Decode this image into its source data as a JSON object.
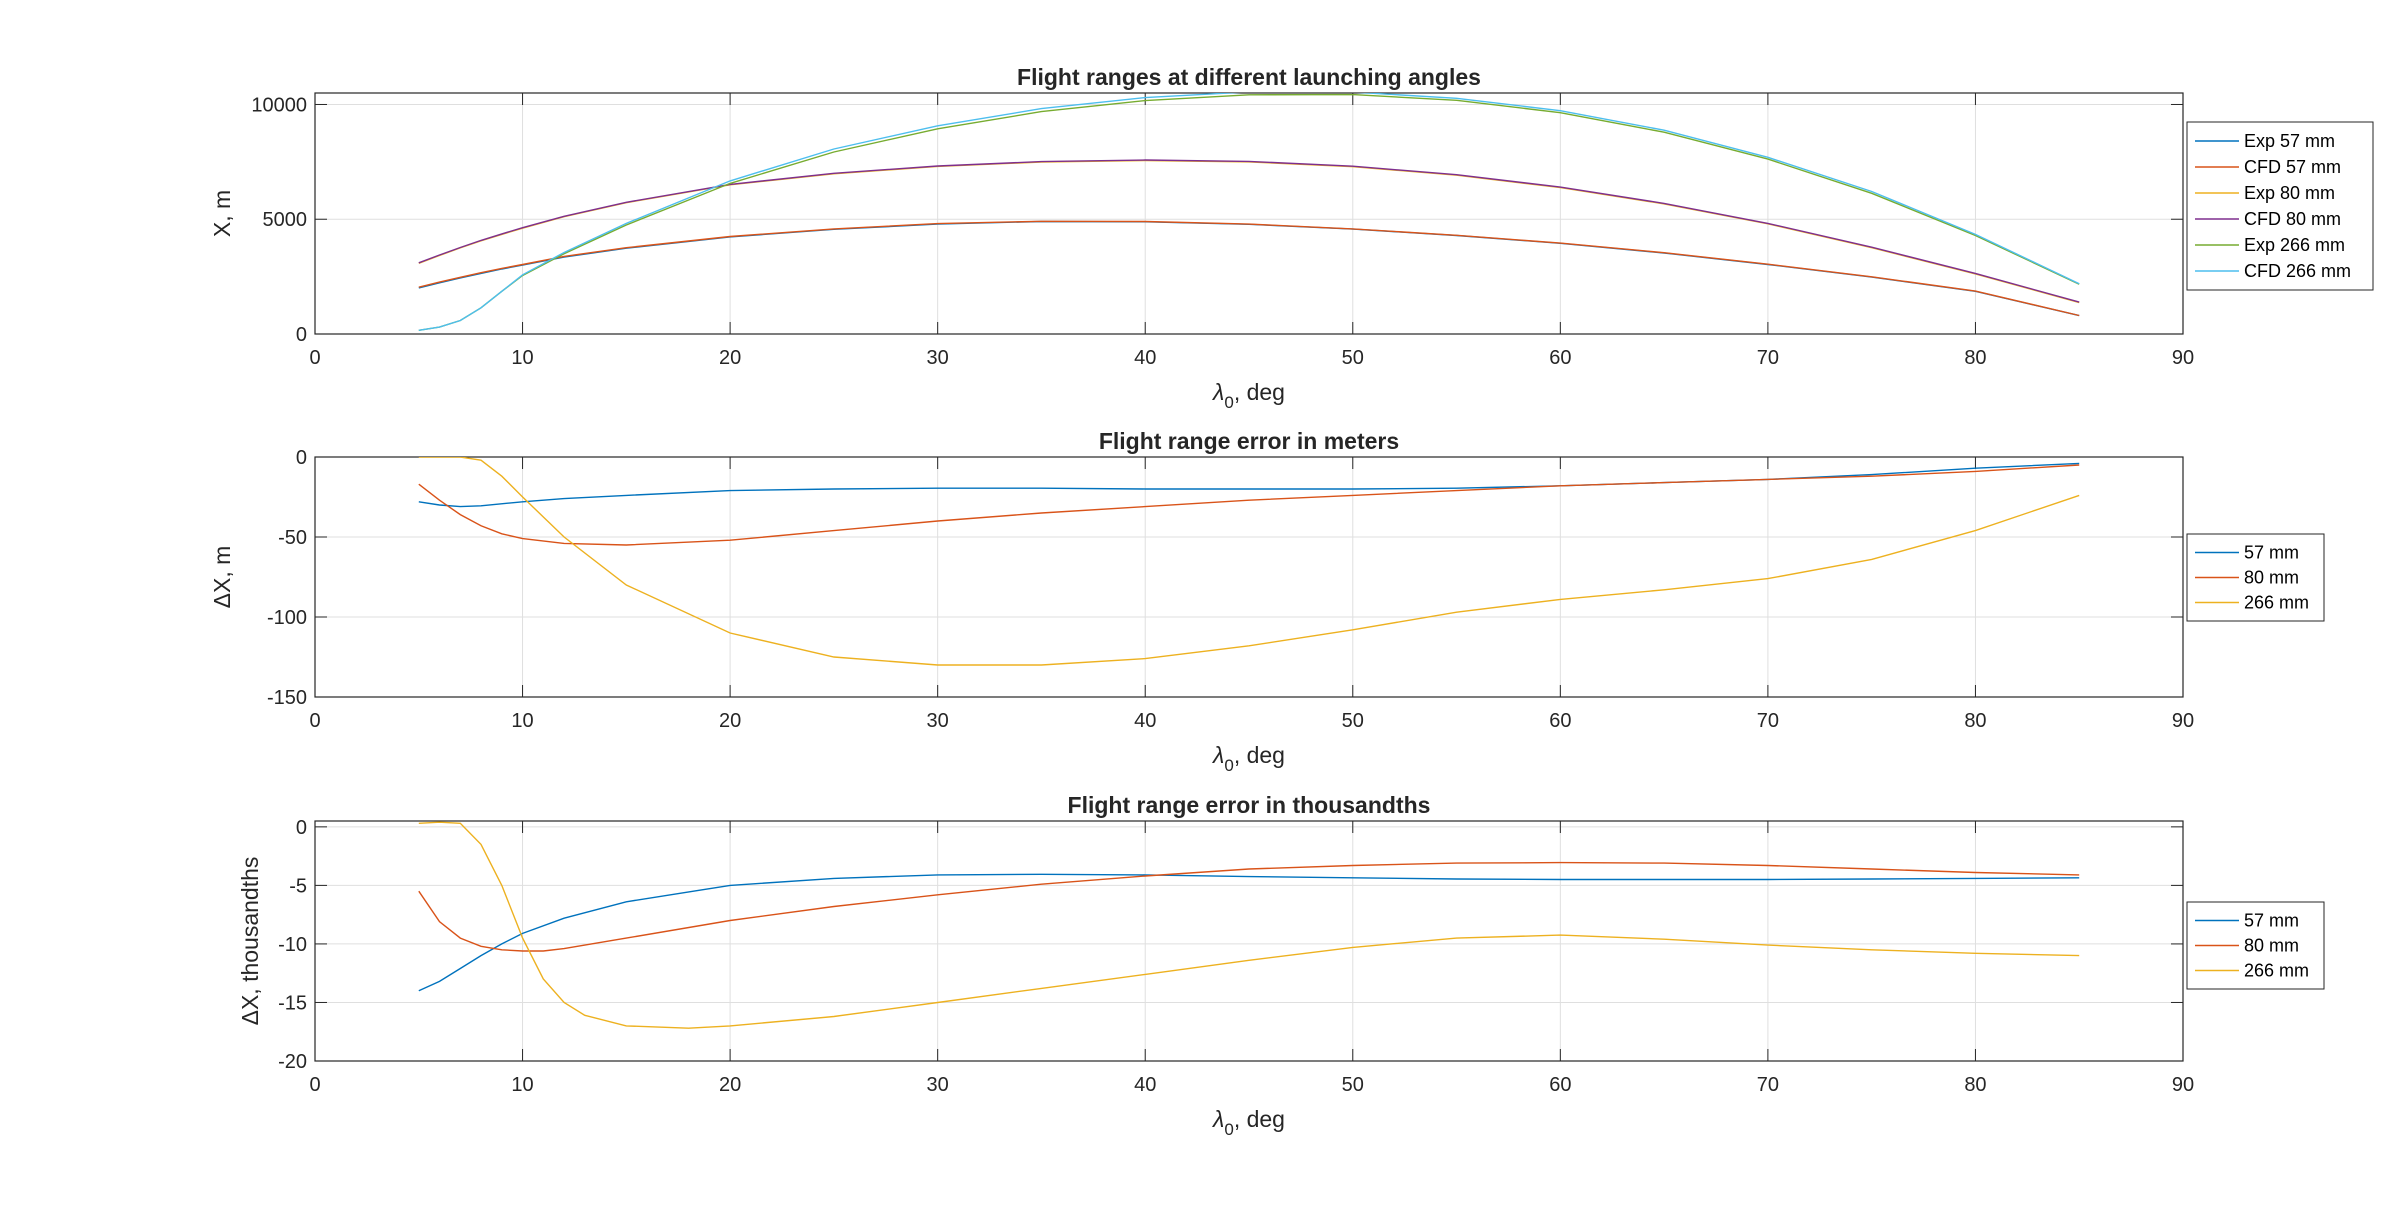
{
  "chart_data": [
    {
      "type": "line",
      "title": "Flight ranges at different launching angles",
      "xlabel_symbol": "λ",
      "xlabel_subscript": "0",
      "xlabel_unit": ", deg",
      "ylabel": "X, m",
      "xlim": [
        0,
        90
      ],
      "ylim": [
        0,
        10500
      ],
      "xticks": [
        0,
        10,
        20,
        30,
        40,
        50,
        60,
        70,
        80,
        90
      ],
      "yticks": [
        0,
        5000,
        10000
      ],
      "grid": true,
      "legend_position": "outside-right",
      "x": [
        5,
        6,
        7,
        8,
        9,
        10,
        12,
        15,
        20,
        25,
        30,
        35,
        40,
        45,
        50,
        55,
        60,
        65,
        70,
        75,
        80,
        85
      ],
      "series": [
        {
          "name": "Exp 57 mm",
          "color": "#0072BD",
          "values": [
            2010,
            2230,
            2440,
            2640,
            2830,
            3000,
            3350,
            3740,
            4230,
            4560,
            4790,
            4900,
            4890,
            4780,
            4570,
            4290,
            3950,
            3530,
            3030,
            2480,
            1860,
            800
          ]
        },
        {
          "name": "CFD 57 mm",
          "color": "#D95319",
          "values": [
            2040,
            2260,
            2470,
            2670,
            2860,
            3030,
            3380,
            3760,
            4250,
            4580,
            4810,
            4910,
            4900,
            4790,
            4580,
            4300,
            3960,
            3540,
            3040,
            2490,
            1870,
            805
          ]
        },
        {
          "name": "Exp 80 mm",
          "color": "#EDB120",
          "values": [
            3080,
            3420,
            3750,
            4060,
            4340,
            4610,
            5110,
            5720,
            6500,
            6980,
            7300,
            7490,
            7560,
            7500,
            7290,
            6920,
            6380,
            5670,
            4800,
            3760,
            2620,
            1370
          ]
        },
        {
          "name": "CFD 80 mm",
          "color": "#7E2F8E",
          "values": [
            3100,
            3440,
            3770,
            4080,
            4360,
            4630,
            5130,
            5740,
            6520,
            7000,
            7320,
            7510,
            7580,
            7520,
            7310,
            6940,
            6400,
            5690,
            4820,
            3780,
            2640,
            1390
          ]
        },
        {
          "name": "Exp 266 mm",
          "color": "#77AC30",
          "values": [
            160,
            300,
            590,
            1140,
            1860,
            2550,
            3500,
            4750,
            6560,
            7930,
            8940,
            9690,
            10170,
            10420,
            10430,
            10180,
            9640,
            8790,
            7620,
            6130,
            4290,
            2170
          ]
        },
        {
          "name": "CFD 266 mm",
          "color": "#4DBEEE",
          "values": [
            160,
            300,
            590,
            1140,
            1860,
            2580,
            3550,
            4820,
            6670,
            8060,
            9070,
            9820,
            10300,
            10550,
            10540,
            10270,
            9730,
            8880,
            7700,
            6210,
            4340,
            2190
          ]
        }
      ]
    },
    {
      "type": "line",
      "title": "Flight range error in meters",
      "xlabel_symbol": "λ",
      "xlabel_subscript": "0",
      "xlabel_unit": ", deg",
      "ylabel": "ΔX, m",
      "xlim": [
        0,
        90
      ],
      "ylim": [
        -150,
        0
      ],
      "xticks": [
        0,
        10,
        20,
        30,
        40,
        50,
        60,
        70,
        80,
        90
      ],
      "yticks": [
        -150,
        -100,
        -50,
        0
      ],
      "grid": true,
      "legend_position": "outside-right",
      "series": [
        {
          "name": "57 mm",
          "color": "#0072BD",
          "x": [
            5,
            6,
            7,
            8,
            10,
            12,
            15,
            20,
            25,
            30,
            35,
            40,
            45,
            50,
            55,
            60,
            65,
            70,
            75,
            80,
            85
          ],
          "values": [
            -28,
            -30,
            -31,
            -30.5,
            -28,
            -26,
            -24,
            -21,
            -20,
            -19.5,
            -19.5,
            -20,
            -20,
            -20,
            -19.5,
            -18,
            -16,
            -14,
            -11,
            -7,
            -4
          ]
        },
        {
          "name": "80 mm",
          "color": "#D95319",
          "x": [
            5,
            6,
            7,
            8,
            9,
            10,
            12,
            15,
            20,
            25,
            30,
            35,
            40,
            45,
            50,
            55,
            60,
            65,
            70,
            75,
            80,
            85
          ],
          "values": [
            -17,
            -27,
            -36,
            -43,
            -48,
            -51,
            -54,
            -55,
            -52,
            -46,
            -40,
            -35,
            -31,
            -27,
            -24,
            -21,
            -18,
            -16,
            -14,
            -12,
            -9,
            -5
          ]
        },
        {
          "name": "266 mm",
          "color": "#EDB120",
          "x": [
            5,
            6,
            7,
            8,
            9,
            10,
            12,
            15,
            20,
            25,
            30,
            35,
            40,
            45,
            50,
            55,
            60,
            65,
            70,
            75,
            80,
            85
          ],
          "values": [
            0,
            0,
            0,
            -2,
            -12,
            -25,
            -50,
            -80,
            -110,
            -125,
            -130,
            -130,
            -126,
            -118,
            -108,
            -97,
            -89,
            -83,
            -76,
            -64,
            -46,
            -24
          ]
        }
      ]
    },
    {
      "type": "line",
      "title": "Flight range error in thousandths",
      "xlabel_symbol": "λ",
      "xlabel_subscript": "0",
      "xlabel_unit": ", deg",
      "ylabel": "ΔX, thousandths",
      "xlim": [
        0,
        90
      ],
      "ylim": [
        -20,
        0.5
      ],
      "xticks": [
        0,
        10,
        20,
        30,
        40,
        50,
        60,
        70,
        80,
        90
      ],
      "yticks": [
        -20,
        -15,
        -10,
        -5,
        0
      ],
      "grid": true,
      "legend_position": "outside-right",
      "series": [
        {
          "name": "57 mm",
          "color": "#0072BD",
          "x": [
            5,
            6,
            7,
            8,
            9,
            10,
            12,
            15,
            20,
            25,
            30,
            35,
            40,
            45,
            50,
            55,
            60,
            65,
            70,
            75,
            80,
            85
          ],
          "values": [
            -14,
            -13.2,
            -12.1,
            -11,
            -10,
            -9.1,
            -7.8,
            -6.4,
            -5,
            -4.4,
            -4.1,
            -4.05,
            -4.1,
            -4.25,
            -4.35,
            -4.45,
            -4.5,
            -4.5,
            -4.5,
            -4.45,
            -4.4,
            -4.35
          ]
        },
        {
          "name": "80 mm",
          "color": "#D95319",
          "x": [
            5,
            6,
            7,
            8,
            9,
            10,
            11,
            12,
            15,
            20,
            25,
            30,
            35,
            40,
            45,
            50,
            55,
            60,
            65,
            70,
            75,
            80,
            85
          ],
          "values": [
            -5.5,
            -8.1,
            -9.5,
            -10.2,
            -10.5,
            -10.6,
            -10.6,
            -10.4,
            -9.5,
            -8,
            -6.8,
            -5.8,
            -4.9,
            -4.2,
            -3.6,
            -3.3,
            -3.1,
            -3.05,
            -3.1,
            -3.3,
            -3.6,
            -3.9,
            -4.1
          ]
        },
        {
          "name": "266 mm",
          "color": "#EDB120",
          "x": [
            5,
            6,
            7,
            8,
            9,
            10,
            11,
            12,
            13,
            15,
            18,
            20,
            25,
            30,
            35,
            40,
            45,
            50,
            55,
            60,
            65,
            70,
            75,
            80,
            85
          ],
          "values": [
            0.3,
            0.4,
            0.3,
            -1.5,
            -5,
            -9.5,
            -13,
            -15,
            -16.1,
            -17,
            -17.2,
            -17,
            -16.2,
            -15,
            -13.8,
            -12.6,
            -11.4,
            -10.3,
            -9.5,
            -9.25,
            -9.6,
            -10.1,
            -10.5,
            -10.8,
            -11
          ]
        }
      ]
    }
  ]
}
